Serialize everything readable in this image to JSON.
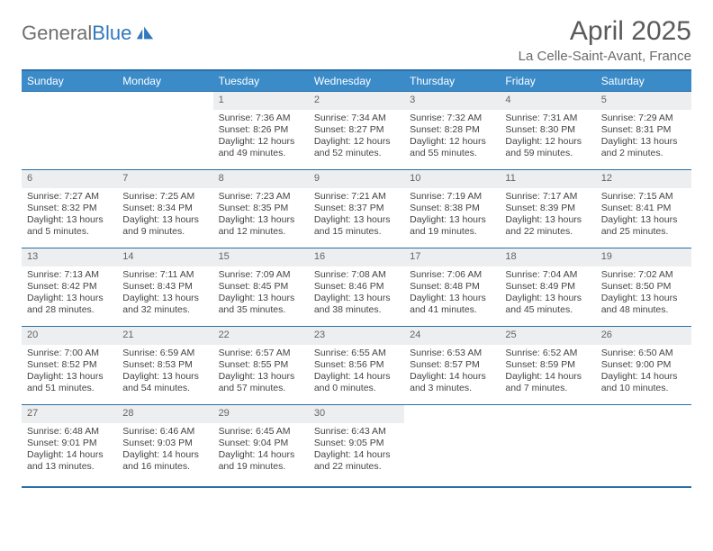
{
  "logo": {
    "text1": "General",
    "text2": "Blue"
  },
  "title": "April 2025",
  "location": "La Celle-Saint-Avant, France",
  "weekdays": [
    "Sunday",
    "Monday",
    "Tuesday",
    "Wednesday",
    "Thursday",
    "Friday",
    "Saturday"
  ],
  "style": {
    "header_bg": "#3b8bc9",
    "header_text": "#ffffff",
    "rule_color": "#2b6fa8",
    "daynum_bg": "#eceeef",
    "daynum_text": "#646464",
    "body_text": "#444444",
    "title_color": "#5a5a5a",
    "location_color": "#6a6a6a",
    "font_family": "Arial",
    "cell_fontsize_pt": 8,
    "header_fontsize_pt": 9,
    "title_fontsize_pt": 23
  },
  "grid": [
    [
      null,
      null,
      {
        "day": "1",
        "sunrise": "7:36 AM",
        "sunset": "8:26 PM",
        "daylight": "12 hours and 49 minutes."
      },
      {
        "day": "2",
        "sunrise": "7:34 AM",
        "sunset": "8:27 PM",
        "daylight": "12 hours and 52 minutes."
      },
      {
        "day": "3",
        "sunrise": "7:32 AM",
        "sunset": "8:28 PM",
        "daylight": "12 hours and 55 minutes."
      },
      {
        "day": "4",
        "sunrise": "7:31 AM",
        "sunset": "8:30 PM",
        "daylight": "12 hours and 59 minutes."
      },
      {
        "day": "5",
        "sunrise": "7:29 AM",
        "sunset": "8:31 PM",
        "daylight": "13 hours and 2 minutes."
      }
    ],
    [
      {
        "day": "6",
        "sunrise": "7:27 AM",
        "sunset": "8:32 PM",
        "daylight": "13 hours and 5 minutes."
      },
      {
        "day": "7",
        "sunrise": "7:25 AM",
        "sunset": "8:34 PM",
        "daylight": "13 hours and 9 minutes."
      },
      {
        "day": "8",
        "sunrise": "7:23 AM",
        "sunset": "8:35 PM",
        "daylight": "13 hours and 12 minutes."
      },
      {
        "day": "9",
        "sunrise": "7:21 AM",
        "sunset": "8:37 PM",
        "daylight": "13 hours and 15 minutes."
      },
      {
        "day": "10",
        "sunrise": "7:19 AM",
        "sunset": "8:38 PM",
        "daylight": "13 hours and 19 minutes."
      },
      {
        "day": "11",
        "sunrise": "7:17 AM",
        "sunset": "8:39 PM",
        "daylight": "13 hours and 22 minutes."
      },
      {
        "day": "12",
        "sunrise": "7:15 AM",
        "sunset": "8:41 PM",
        "daylight": "13 hours and 25 minutes."
      }
    ],
    [
      {
        "day": "13",
        "sunrise": "7:13 AM",
        "sunset": "8:42 PM",
        "daylight": "13 hours and 28 minutes."
      },
      {
        "day": "14",
        "sunrise": "7:11 AM",
        "sunset": "8:43 PM",
        "daylight": "13 hours and 32 minutes."
      },
      {
        "day": "15",
        "sunrise": "7:09 AM",
        "sunset": "8:45 PM",
        "daylight": "13 hours and 35 minutes."
      },
      {
        "day": "16",
        "sunrise": "7:08 AM",
        "sunset": "8:46 PM",
        "daylight": "13 hours and 38 minutes."
      },
      {
        "day": "17",
        "sunrise": "7:06 AM",
        "sunset": "8:48 PM",
        "daylight": "13 hours and 41 minutes."
      },
      {
        "day": "18",
        "sunrise": "7:04 AM",
        "sunset": "8:49 PM",
        "daylight": "13 hours and 45 minutes."
      },
      {
        "day": "19",
        "sunrise": "7:02 AM",
        "sunset": "8:50 PM",
        "daylight": "13 hours and 48 minutes."
      }
    ],
    [
      {
        "day": "20",
        "sunrise": "7:00 AM",
        "sunset": "8:52 PM",
        "daylight": "13 hours and 51 minutes."
      },
      {
        "day": "21",
        "sunrise": "6:59 AM",
        "sunset": "8:53 PM",
        "daylight": "13 hours and 54 minutes."
      },
      {
        "day": "22",
        "sunrise": "6:57 AM",
        "sunset": "8:55 PM",
        "daylight": "13 hours and 57 minutes."
      },
      {
        "day": "23",
        "sunrise": "6:55 AM",
        "sunset": "8:56 PM",
        "daylight": "14 hours and 0 minutes."
      },
      {
        "day": "24",
        "sunrise": "6:53 AM",
        "sunset": "8:57 PM",
        "daylight": "14 hours and 3 minutes."
      },
      {
        "day": "25",
        "sunrise": "6:52 AM",
        "sunset": "8:59 PM",
        "daylight": "14 hours and 7 minutes."
      },
      {
        "day": "26",
        "sunrise": "6:50 AM",
        "sunset": "9:00 PM",
        "daylight": "14 hours and 10 minutes."
      }
    ],
    [
      {
        "day": "27",
        "sunrise": "6:48 AM",
        "sunset": "9:01 PM",
        "daylight": "14 hours and 13 minutes."
      },
      {
        "day": "28",
        "sunrise": "6:46 AM",
        "sunset": "9:03 PM",
        "daylight": "14 hours and 16 minutes."
      },
      {
        "day": "29",
        "sunrise": "6:45 AM",
        "sunset": "9:04 PM",
        "daylight": "14 hours and 19 minutes."
      },
      {
        "day": "30",
        "sunrise": "6:43 AM",
        "sunset": "9:05 PM",
        "daylight": "14 hours and 22 minutes."
      },
      null,
      null,
      null
    ]
  ]
}
